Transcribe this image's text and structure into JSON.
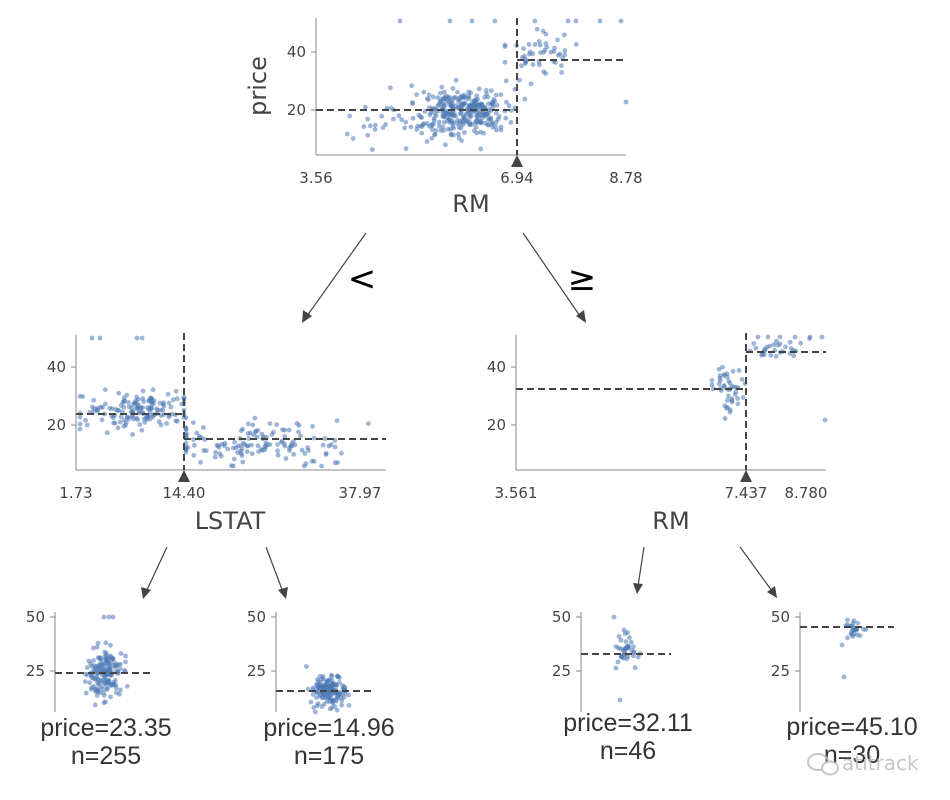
{
  "chart_data": [
    {
      "id": "root",
      "type": "scatter",
      "feature": "RM",
      "ylabel": "price",
      "xlim": [
        3.56,
        8.78
      ],
      "ylim": [
        5,
        50
      ],
      "split": 6.94,
      "xticks": [
        "3.56",
        "6.94",
        "8.78"
      ],
      "yticks": [
        20,
        40
      ],
      "left_mean": 20,
      "right_mean": 37
    },
    {
      "id": "left",
      "type": "scatter",
      "feature": "LSTAT",
      "xlim": [
        1.73,
        37.97
      ],
      "ylim": [
        5,
        50
      ],
      "split": 14.4,
      "xticks": [
        "1.73",
        "14.40",
        "37.97"
      ],
      "yticks": [
        20,
        40
      ],
      "left_mean": 23.35,
      "right_mean": 14.96
    },
    {
      "id": "right",
      "type": "scatter",
      "feature": "RM",
      "xlim": [
        3.561,
        8.78
      ],
      "ylim": [
        5,
        50
      ],
      "split": 7.437,
      "xticks": [
        "3.561",
        "7.437",
        "8.780"
      ],
      "yticks": [
        20,
        40
      ],
      "left_mean": 32.11,
      "right_mean": 45.1
    }
  ],
  "edges": {
    "left_label": "<",
    "right_label": "≥"
  },
  "leaves": [
    {
      "id": "leaf1",
      "price_label": "price=23.35",
      "n_label": "n=255",
      "mean": 23.35,
      "n": 255,
      "yticks": [
        "50",
        "25"
      ]
    },
    {
      "id": "leaf2",
      "price_label": "price=14.96",
      "n_label": "n=175",
      "mean": 14.96,
      "n": 175,
      "yticks": [
        "50",
        "25"
      ]
    },
    {
      "id": "leaf3",
      "price_label": "price=32.11",
      "n_label": "n=46",
      "mean": 32.11,
      "n": 46,
      "yticks": [
        "50",
        "25"
      ]
    },
    {
      "id": "leaf4",
      "price_label": "price=45.10",
      "n_label": "n=30",
      "mean": 45.1,
      "n": 30,
      "yticks": [
        "50",
        "25"
      ]
    }
  ],
  "watermark": "atitrack",
  "colors": {
    "point": "#4c78b5",
    "line": "#444444",
    "axis": "#888888",
    "text": "#444444"
  }
}
